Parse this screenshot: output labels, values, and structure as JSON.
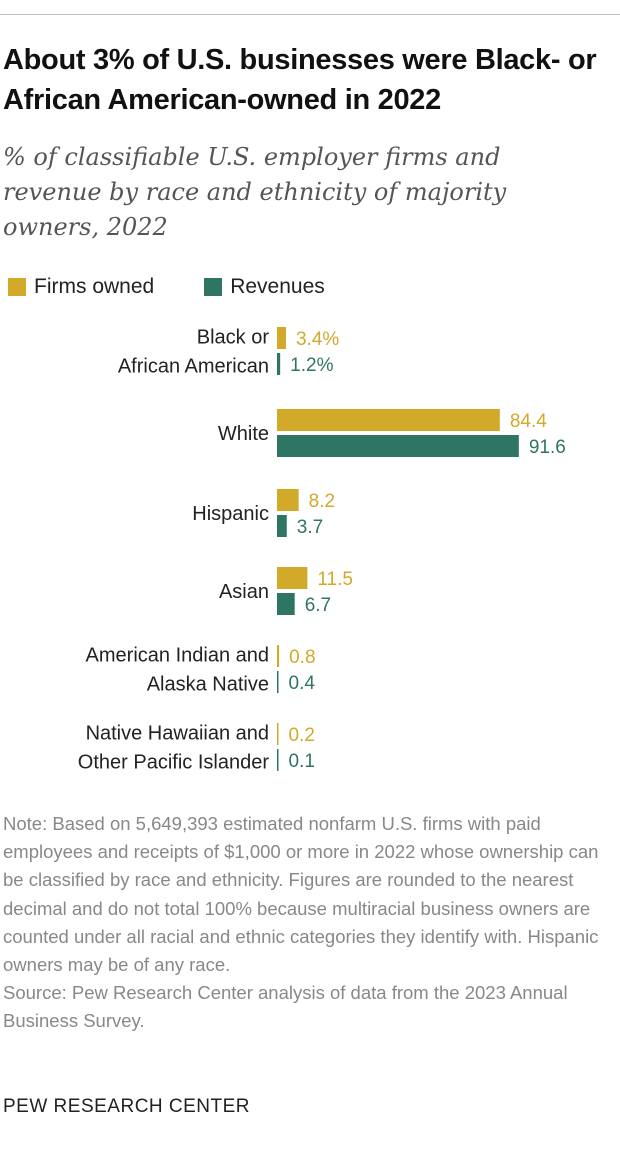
{
  "title": "About 3% of U.S. businesses were Black- or African American-owned in 2022",
  "subtitle": "% of classifiable U.S. employer firms and revenue by race and ethnicity of majority owners, 2022",
  "legend": {
    "firms": "Firms owned",
    "revenues": "Revenues"
  },
  "colors": {
    "firms": "#d3a929",
    "revenues": "#2f7563"
  },
  "chart_data": {
    "type": "bar",
    "orientation": "horizontal",
    "categories": [
      [
        "Black or",
        "African American"
      ],
      [
        "White"
      ],
      [
        "Hispanic"
      ],
      [
        "Asian"
      ],
      [
        "American Indian and",
        "Alaska Native"
      ],
      [
        "Native Hawaiian and",
        "Other Pacific Islander"
      ]
    ],
    "series": [
      {
        "name": "Firms owned",
        "values": [
          3.4,
          84.4,
          8.2,
          11.5,
          0.8,
          0.2
        ],
        "labels": [
          "3.4%",
          "84.4",
          "8.2",
          "11.5",
          "0.8",
          "0.2"
        ]
      },
      {
        "name": "Revenues",
        "values": [
          1.2,
          91.6,
          3.7,
          6.7,
          0.4,
          0.1
        ],
        "labels": [
          "1.2%",
          "91.6",
          "3.7",
          "6.7",
          "0.4",
          "0.1"
        ]
      }
    ],
    "xlim": [
      0,
      100
    ],
    "grid": false,
    "legend_position": "top-left"
  },
  "note": "Note: Based on 5,649,393 estimated nonfarm U.S. firms with paid employees and receipts of $1,000 or more in 2022 whose ownership can be classified by race and ethnicity. Figures are rounded to the nearest decimal and do not total 100% because multiracial business owners are counted under all racial and ethnic categories they identify with. Hispanic owners may be of any race.",
  "source": "Source: Pew Research Center analysis of data from the 2023 Annual Business Survey.",
  "brand": "PEW RESEARCH CENTER"
}
